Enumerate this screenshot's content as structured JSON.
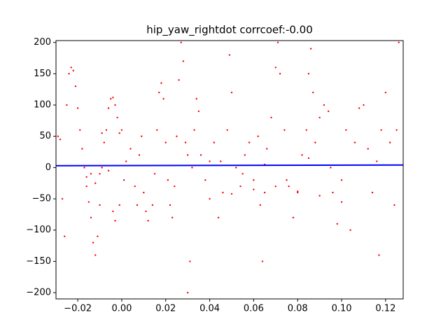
{
  "chart_data": {
    "type": "scatter",
    "title": "hip_yaw_rightdot corrcoef:-0.00",
    "xlim": [
      -0.0299,
      0.128
    ],
    "ylim": [
      -210,
      203
    ],
    "xticks": [
      {
        "value": -0.02,
        "label": "−0.02"
      },
      {
        "value": 0,
        "label": "0.00"
      },
      {
        "value": 0.02,
        "label": "0.02"
      },
      {
        "value": 0.04,
        "label": "0.04"
      },
      {
        "value": 0.06,
        "label": "0.06"
      },
      {
        "value": 0.08,
        "label": "0.08"
      },
      {
        "value": 0.1,
        "label": "0.10"
      },
      {
        "value": 0.12,
        "label": "0.12"
      }
    ],
    "yticks": [
      {
        "value": -200,
        "label": "−200"
      },
      {
        "value": -150,
        "label": "−150"
      },
      {
        "value": -100,
        "label": "−100"
      },
      {
        "value": -50,
        "label": "−50"
      },
      0,
      50,
      100,
      150,
      200
    ],
    "series": [
      {
        "type": "scatter",
        "color": "#ff0000",
        "x": [
          -0.029,
          -0.028,
          -0.027,
          -0.026,
          -0.025,
          -0.024,
          -0.023,
          -0.022,
          -0.021,
          -0.02,
          -0.019,
          -0.018,
          -0.017,
          -0.016,
          -0.015,
          -0.014,
          -0.013,
          -0.012,
          -0.011,
          -0.01,
          -0.009,
          -0.008,
          -0.007,
          -0.006,
          -0.005,
          -0.004,
          -0.003,
          -0.002,
          -0.001,
          0.0,
          -0.016,
          -0.014,
          -0.012,
          -0.01,
          -0.009,
          -0.006,
          -0.004,
          -0.003,
          -0.001,
          0.001,
          0.002,
          0.004,
          0.006,
          0.007,
          0.008,
          0.009,
          0.01,
          0.011,
          0.012,
          0.014,
          0.015,
          0.016,
          0.017,
          0.018,
          0.019,
          0.02,
          0.021,
          0.022,
          0.023,
          0.024,
          0.025,
          0.026,
          0.027,
          0.028,
          0.029,
          0.03,
          0.031,
          0.032,
          0.033,
          0.034,
          0.035,
          0.036,
          0.038,
          0.04,
          0.042,
          0.044,
          0.046,
          0.048,
          0.049,
          0.05,
          0.052,
          0.054,
          0.056,
          0.058,
          0.06,
          0.062,
          0.063,
          0.064,
          0.065,
          0.066,
          0.068,
          0.07,
          0.071,
          0.072,
          0.074,
          0.076,
          0.078,
          0.08,
          0.082,
          0.084,
          0.085,
          0.086,
          0.087,
          0.088,
          0.09,
          0.092,
          0.094,
          0.096,
          0.098,
          0.1,
          0.102,
          0.104,
          0.106,
          0.108,
          0.11,
          0.112,
          0.114,
          0.116,
          0.117,
          0.118,
          0.12,
          0.122,
          0.124,
          0.125,
          0.126,
          0.04,
          0.05,
          0.06,
          0.07,
          0.08,
          0.09,
          0.1,
          0.03,
          0.045,
          0.055,
          0.065,
          0.075,
          0.085,
          0.095
        ],
        "values": [
          50,
          45,
          -50,
          -110,
          100,
          150,
          160,
          155,
          130,
          95,
          60,
          30,
          0,
          -30,
          -55,
          -80,
          -120,
          -140,
          -110,
          -60,
          0,
          40,
          60,
          95,
          110,
          112,
          100,
          80,
          55,
          60,
          -15,
          -10,
          -25,
          -10,
          55,
          -5,
          -70,
          -85,
          -60,
          -20,
          10,
          30,
          -30,
          -60,
          20,
          50,
          -40,
          -70,
          -85,
          -60,
          -10,
          60,
          120,
          135,
          110,
          40,
          -20,
          -60,
          -80,
          -30,
          50,
          140,
          200,
          170,
          40,
          -200,
          -150,
          0,
          60,
          110,
          90,
          20,
          -20,
          10,
          40,
          -80,
          -40,
          60,
          180,
          120,
          0,
          -30,
          20,
          40,
          -20,
          50,
          -60,
          -150,
          -40,
          30,
          80,
          160,
          200,
          150,
          60,
          -30,
          -80,
          -40,
          20,
          60,
          150,
          190,
          120,
          40,
          80,
          100,
          90,
          -40,
          -90,
          -20,
          60,
          -100,
          40,
          95,
          100,
          30,
          -40,
          10,
          -140,
          60,
          120,
          40,
          -60,
          60,
          200,
          -50,
          -42,
          -35,
          -30,
          -38,
          -45,
          -55,
          20,
          10,
          -10,
          5,
          -20,
          15,
          0
        ]
      },
      {
        "type": "line",
        "color": "#0000ff",
        "x": [
          -0.0299,
          0.128
        ],
        "values": [
          3,
          4
        ]
      }
    ]
  }
}
